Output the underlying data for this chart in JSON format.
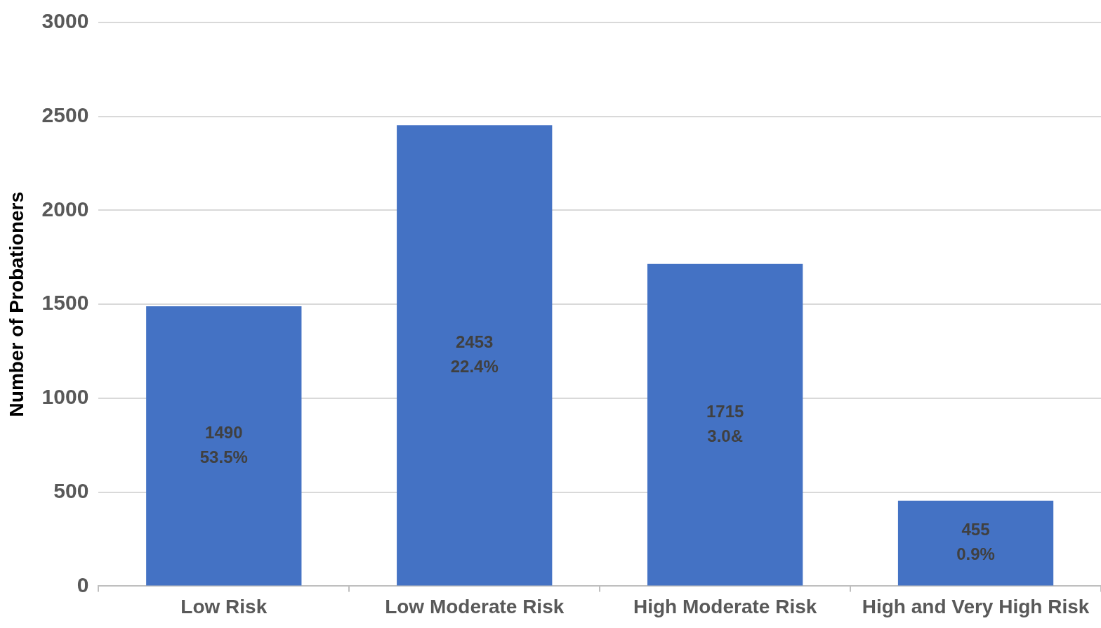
{
  "chart_data": {
    "type": "bar",
    "ylabel": "Number of Probationers",
    "categories": [
      "Low Risk",
      "Low Moderate Risk",
      "High Moderate Risk",
      "High and Very High Risk"
    ],
    "values": [
      1490,
      2453,
      1715,
      455
    ],
    "value_labels": [
      "1490\n53.5%",
      "2453\n22.4%",
      "1715\n3.0&",
      "455\n0.9%"
    ],
    "color": "#4472c4",
    "ylim": [
      0,
      3000
    ],
    "yticks": [
      0,
      500,
      1000,
      1500,
      2000,
      2500,
      3000
    ],
    "grid": "y",
    "legend": false
  }
}
